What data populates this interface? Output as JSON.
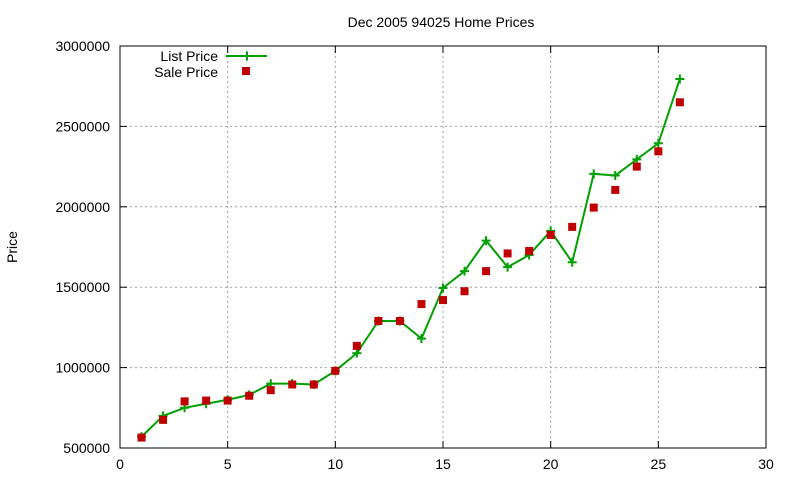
{
  "chart_data": {
    "type": "line",
    "title": "Dec 2005 94025 Home Prices",
    "xlabel": "",
    "ylabel": "Price",
    "xlim": [
      0,
      30
    ],
    "ylim": [
      500000,
      3000000
    ],
    "xticks": [
      0,
      5,
      10,
      15,
      20,
      25,
      30
    ],
    "yticks": [
      500000,
      1000000,
      1500000,
      2000000,
      2500000,
      3000000
    ],
    "xtick_labels": [
      "0",
      "5",
      "10",
      "15",
      "20",
      "25",
      "30"
    ],
    "ytick_labels": [
      "500000",
      "1000000",
      "1500000",
      "2000000",
      "2500000",
      "3000000"
    ],
    "grid": true,
    "legend_position": "top-left",
    "series": [
      {
        "name": "List Price",
        "kind": "line-with-plus-markers",
        "color": "#00a000",
        "x": [
          1,
          2,
          3,
          4,
          5,
          6,
          7,
          8,
          9,
          10,
          11,
          12,
          13,
          14,
          15,
          16,
          17,
          18,
          19,
          20,
          21,
          22,
          23,
          24,
          25,
          26
        ],
        "values": [
          570000,
          700000,
          750000,
          775000,
          800000,
          830000,
          900000,
          900000,
          895000,
          980000,
          1090000,
          1290000,
          1290000,
          1180000,
          1495000,
          1600000,
          1790000,
          1625000,
          1700000,
          1850000,
          1655000,
          2205000,
          2195000,
          2295000,
          2395000,
          2795000
        ]
      },
      {
        "name": "Sale Price",
        "kind": "square-markers",
        "color": "#c00000",
        "x": [
          1,
          2,
          3,
          4,
          5,
          6,
          7,
          8,
          9,
          10,
          11,
          12,
          13,
          14,
          15,
          16,
          17,
          18,
          19,
          20,
          21,
          22,
          23,
          24,
          25,
          26
        ],
        "values": [
          565000,
          675000,
          790000,
          795000,
          795000,
          825000,
          860000,
          895000,
          895000,
          980000,
          1135000,
          1290000,
          1290000,
          1395000,
          1420000,
          1475000,
          1600000,
          1710000,
          1725000,
          1825000,
          1875000,
          1995000,
          2105000,
          2250000,
          2345000,
          2650000
        ]
      }
    ]
  }
}
